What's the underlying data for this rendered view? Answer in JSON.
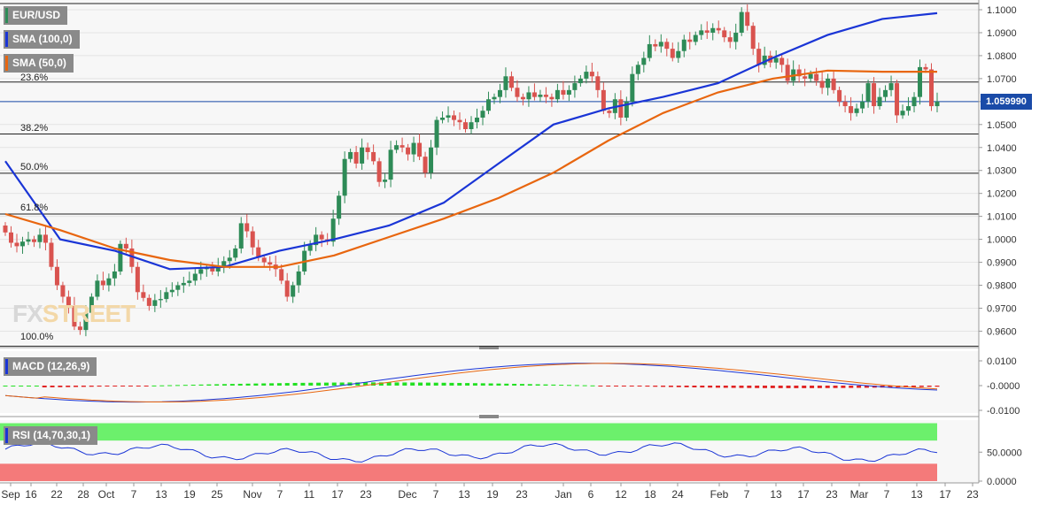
{
  "legend": {
    "pair": {
      "label": "EUR/USD",
      "color": "#2e8b57"
    },
    "sma100": {
      "label": "SMA (100,0)",
      "color": "#1a35d6"
    },
    "sma50": {
      "label": "SMA (50,0)",
      "color": "#e8660f"
    }
  },
  "current_price": "1.059990",
  "fib_levels": [
    {
      "label": "23.6%",
      "value": 1.0685
    },
    {
      "label": "38.2%",
      "value": 1.0459
    },
    {
      "label": "50.0%",
      "value": 1.0288
    },
    {
      "label": "61.8%",
      "value": 1.011
    },
    {
      "label": "100.0%",
      "value": 0.9535
    }
  ],
  "watermark": {
    "part1": "FX",
    "part2": "STREET"
  },
  "macd": {
    "label": "MACD (12,26,9)",
    "ticks": [
      "0.0100",
      "-0.0000",
      "-0.0100"
    ]
  },
  "rsi": {
    "label": "RSI (14,70,30,1)",
    "ticks": [
      "50.0000",
      "0.0000"
    ]
  },
  "x_labels": [
    "Sep",
    "16",
    "22",
    "28",
    "Oct",
    "7",
    "13",
    "19",
    "25",
    "Nov",
    "7",
    "11",
    "17",
    "23",
    "Dec",
    "7",
    "13",
    "19",
    "23",
    "Jan",
    "6",
    "12",
    "18",
    "24",
    "Feb",
    "7",
    "13",
    "17",
    "23",
    "Mar",
    "7",
    "13",
    "17",
    "23"
  ],
  "chart_data": {
    "type": "candlestick",
    "title": "EUR/USD",
    "y_ticks": [
      "1.1000",
      "1.0900",
      "1.0800",
      "1.0700",
      "1.0600",
      "1.0500",
      "1.0400",
      "1.0300",
      "1.0200",
      "1.0100",
      "1.0000",
      "0.9900",
      "0.9800",
      "0.9700",
      "0.9600"
    ],
    "ylim": [
      0.9535,
      1.104
    ],
    "closes": [
      1.003,
      0.9985,
      0.997,
      0.999,
      1.0,
      0.9988,
      1.002,
      0.9985,
      0.988,
      0.98,
      0.975,
      0.971,
      0.962,
      0.9605,
      0.968,
      0.975,
      0.982,
      0.98,
      0.983,
      0.986,
      0.998,
      0.996,
      0.988,
      0.977,
      0.9745,
      0.971,
      0.9735,
      0.974,
      0.977,
      0.978,
      0.98,
      0.981,
      0.982,
      0.985,
      0.987,
      0.9875,
      0.986,
      0.988,
      0.9905,
      0.992,
      0.996,
      1.007,
      1.0035,
      0.9965,
      0.992,
      0.99,
      0.989,
      0.987,
      0.982,
      0.975,
      0.98,
      0.986,
      0.995,
      0.9975,
      1.002,
      1.0,
      0.999,
      1.009,
      1.019,
      1.035,
      1.038,
      1.033,
      1.04,
      1.038,
      1.034,
      1.025,
      1.026,
      1.039,
      1.041,
      1.04,
      1.037,
      1.042,
      1.036,
      1.029,
      1.04,
      1.052,
      1.053,
      1.054,
      1.052,
      1.051,
      1.048,
      1.051,
      1.053,
      1.056,
      1.061,
      1.062,
      1.065,
      1.071,
      1.066,
      1.062,
      1.061,
      1.064,
      1.062,
      1.063,
      1.062,
      1.061,
      1.065,
      1.063,
      1.065,
      1.068,
      1.07,
      1.073,
      1.071,
      1.065,
      1.056,
      1.055,
      1.061,
      1.053,
      1.06,
      1.072,
      1.076,
      1.079,
      1.085,
      1.084,
      1.086,
      1.083,
      1.079,
      1.082,
      1.087,
      1.086,
      1.089,
      1.091,
      1.09,
      1.092,
      1.091,
      1.088,
      1.086,
      1.09,
      1.099,
      1.093,
      1.083,
      1.076,
      1.08,
      1.077,
      1.079,
      1.076,
      1.069,
      1.074,
      1.071,
      1.07,
      1.072,
      1.069,
      1.066,
      1.07,
      1.065,
      1.06,
      1.058,
      1.055,
      1.057,
      1.06,
      1.068,
      1.058,
      1.062,
      1.065,
      1.068,
      1.054,
      1.056,
      1.058,
      1.062,
      1.075,
      1.074,
      1.058,
      1.06
    ],
    "series": [
      {
        "name": "SMA (100,0)",
        "color": "#1a35d6",
        "values": [
          1.034,
          1.0,
          0.995,
          0.987,
          0.988,
          0.995,
          1.0,
          1.006,
          1.016,
          1.033,
          1.05,
          1.057,
          1.062,
          1.068,
          1.079,
          1.089,
          1.096,
          1.0985
        ]
      },
      {
        "name": "SMA (50,0)",
        "color": "#e8660f",
        "values": [
          1.011,
          1.004,
          0.996,
          0.991,
          0.988,
          0.988,
          0.993,
          1.001,
          1.009,
          1.018,
          1.029,
          1.043,
          1.055,
          1.064,
          1.07,
          1.0735,
          1.073,
          1.073
        ]
      }
    ]
  }
}
